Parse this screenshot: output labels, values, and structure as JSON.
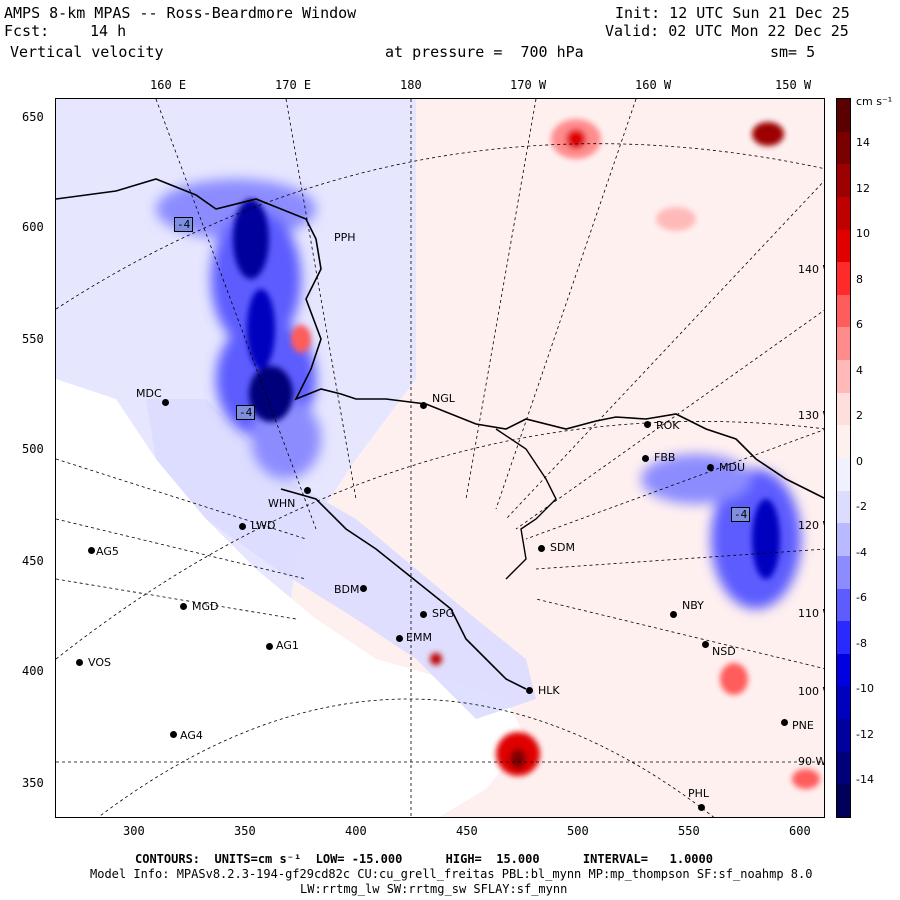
{
  "header": {
    "title": "AMPS 8-km MPAS -- Ross-Beardmore Window",
    "fcst_label": "Fcst:",
    "fcst_value": "14 h",
    "field": "Vertical velocity",
    "init": "Init: 12 UTC Sun 21 Dec 25",
    "valid": "Valid: 02 UTC Mon 22 Dec 25",
    "pressure": "at pressure =  700 hPa",
    "smooth": "sm= 5"
  },
  "top_axis": [
    "160 E",
    "170 E",
    "180",
    "170 W",
    "160 W",
    "150 W"
  ],
  "left_axis": [
    "650",
    "600",
    "550",
    "500",
    "450",
    "400",
    "350"
  ],
  "bottom_axis": [
    "300",
    "350",
    "400",
    "450",
    "500",
    "550",
    "600"
  ],
  "right_lon_labels": [
    "140 W",
    "130 W",
    "120 W",
    "110 W",
    "100 W",
    "90 W"
  ],
  "colorbar": {
    "unit": "cm s⁻¹",
    "labels": [
      "14",
      "12",
      "10",
      "8",
      "6",
      "4",
      "2",
      "0",
      "-2",
      "-4",
      "-6",
      "-8",
      "-10",
      "-12",
      "-14"
    ],
    "colors": [
      "#5a0000",
      "#7a0000",
      "#9c0000",
      "#bf0000",
      "#e00000",
      "#ff2a2a",
      "#ff5c5c",
      "#ff8c8c",
      "#ffb9b9",
      "#ffdede",
      "#fff0f0",
      "#f0f0ff",
      "#dcdcff",
      "#b9b9ff",
      "#8c8cff",
      "#5c5cff",
      "#2a2aff",
      "#0000e0",
      "#0000bf",
      "#00009c",
      "#00007a",
      "#00005a"
    ]
  },
  "stations": [
    "PPH",
    "MDC",
    "NGL",
    "ROK",
    "FBB",
    "MDU",
    "WHN",
    "LWD",
    "AG5",
    "SDM",
    "BDM",
    "SPG",
    "MGD",
    "NBY",
    "AG1",
    "EMM",
    "NSD",
    "VOS",
    "HLK",
    "PNE",
    "AG4",
    "PHL"
  ],
  "box_labels": [
    "-4",
    "-4",
    "-4"
  ],
  "footer": {
    "contours": "CONTOURS:  UNITS=cm s⁻¹  LOW= -15.000      HIGH=  15.000      INTERVAL=   1.0000",
    "model": "Model Info: MPASv8.2.3-194-gf29cd82c CU:cu_grell_freitas PBL:bl_mynn MP:mp_thompson SF:sf_noahmp 8.0",
    "physics": "LW:rrtmg_lw SW:rrtmg_sw SFLAY:sf_mynn"
  }
}
